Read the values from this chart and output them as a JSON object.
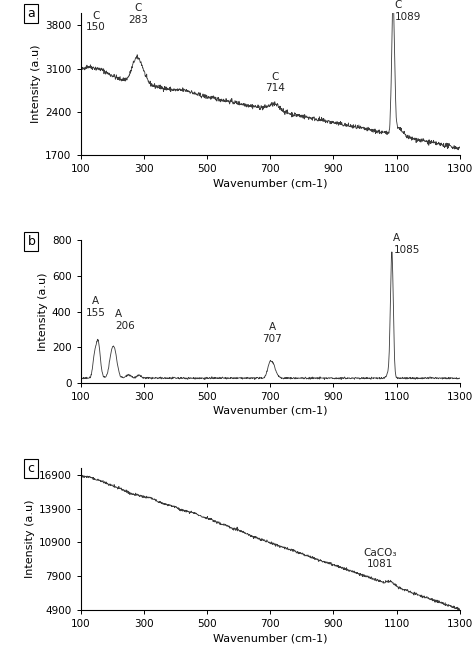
{
  "panel_a": {
    "label": "a",
    "xlim": [
      100,
      1300
    ],
    "ylim": [
      1700,
      4000
    ],
    "yticks": [
      1700,
      2400,
      3100,
      3800
    ],
    "xticks": [
      100,
      300,
      500,
      700,
      900,
      1100,
      1300
    ],
    "ylabel": "Intensity (a.u)",
    "xlabel": "Wavenumber (cm-1)"
  },
  "panel_b": {
    "label": "b",
    "xlim": [
      100,
      1300
    ],
    "ylim": [
      0,
      800
    ],
    "yticks": [
      0,
      200,
      400,
      600,
      800
    ],
    "xticks": [
      100,
      300,
      500,
      700,
      900,
      1100,
      1300
    ],
    "ylabel": "Intensity (a.u)",
    "xlabel": "Wavenumber (cm-1)"
  },
  "panel_c": {
    "label": "c",
    "xlim": [
      100,
      1300
    ],
    "ylim": [
      4900,
      17500
    ],
    "yticks": [
      4900,
      7900,
      10900,
      13900,
      16900
    ],
    "xticks": [
      100,
      300,
      500,
      700,
      900,
      1100,
      1300
    ],
    "ylabel": "Intensity (a.u)",
    "xlabel": "Wavenumber (cm-1)"
  },
  "line_color": "#3a3a3a",
  "font_size": 8,
  "tick_font_size": 7.5,
  "annot_font_size": 7.5
}
